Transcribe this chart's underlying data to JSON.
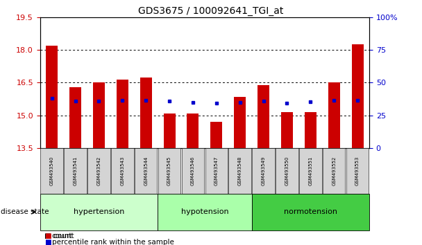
{
  "title": "GDS3675 / 100092641_TGI_at",
  "samples": [
    "GSM493540",
    "GSM493541",
    "GSM493542",
    "GSM493543",
    "GSM493544",
    "GSM493545",
    "GSM493546",
    "GSM493547",
    "GSM493548",
    "GSM493549",
    "GSM493550",
    "GSM493551",
    "GSM493552",
    "GSM493553"
  ],
  "bar_heights": [
    18.2,
    16.3,
    16.5,
    16.65,
    16.75,
    15.1,
    15.1,
    14.7,
    15.85,
    16.4,
    15.15,
    15.15,
    16.5,
    18.25
  ],
  "blue_y": [
    15.8,
    15.65,
    15.65,
    15.7,
    15.7,
    15.65,
    15.6,
    15.58,
    15.6,
    15.65,
    15.58,
    15.62,
    15.68,
    15.7
  ],
  "ymin": 13.5,
  "ymax": 19.5,
  "yticks_left": [
    13.5,
    15.0,
    16.5,
    18.0,
    19.5
  ],
  "yticks_right": [
    0,
    25,
    50,
    75,
    100
  ],
  "bar_color": "#cc0000",
  "blue_color": "#0000cc",
  "tick_color_left": "#cc0000",
  "tick_color_right": "#0000cc",
  "hypertension_color": "#ccffcc",
  "hypotension_color": "#aaffaa",
  "normotension_color": "#44cc44",
  "sample_box_color": "#d4d4d4",
  "title_fontsize": 10,
  "bar_width": 0.5,
  "group_spans": [
    [
      0,
      4,
      "hypertension"
    ],
    [
      5,
      8,
      "hypotension"
    ],
    [
      9,
      13,
      "normotension"
    ]
  ]
}
